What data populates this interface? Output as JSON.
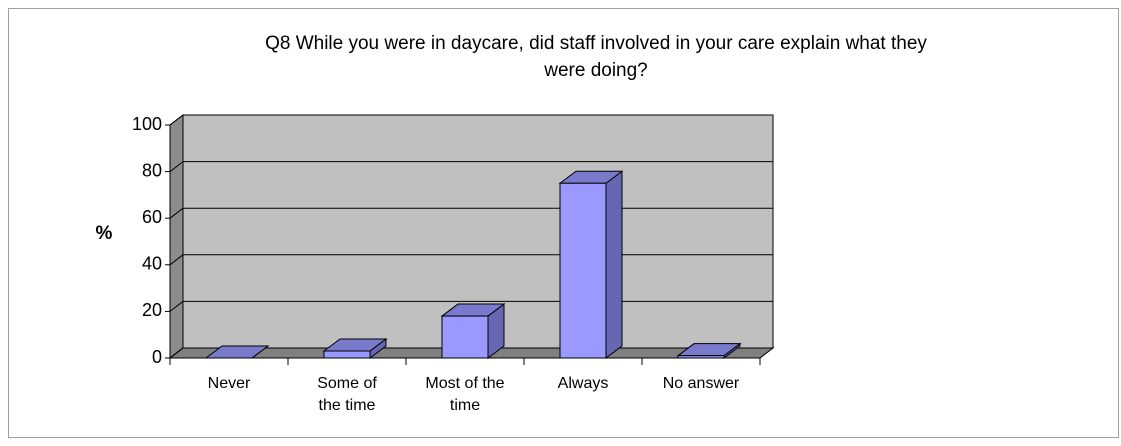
{
  "chart_data": {
    "type": "bar3d",
    "title": "Q8  While you were in daycare, did staff involved in your care explain what they were doing?",
    "ylabel": "%",
    "categories": [
      "Never",
      "Some of the time",
      "Most of the time",
      "Always",
      "No answer"
    ],
    "values": [
      0,
      3,
      18,
      75,
      1
    ],
    "color": "#9999ff",
    "ylim": [
      0,
      100
    ],
    "yticks": [
      0,
      20,
      40,
      60,
      80,
      100
    ],
    "grid": true
  }
}
